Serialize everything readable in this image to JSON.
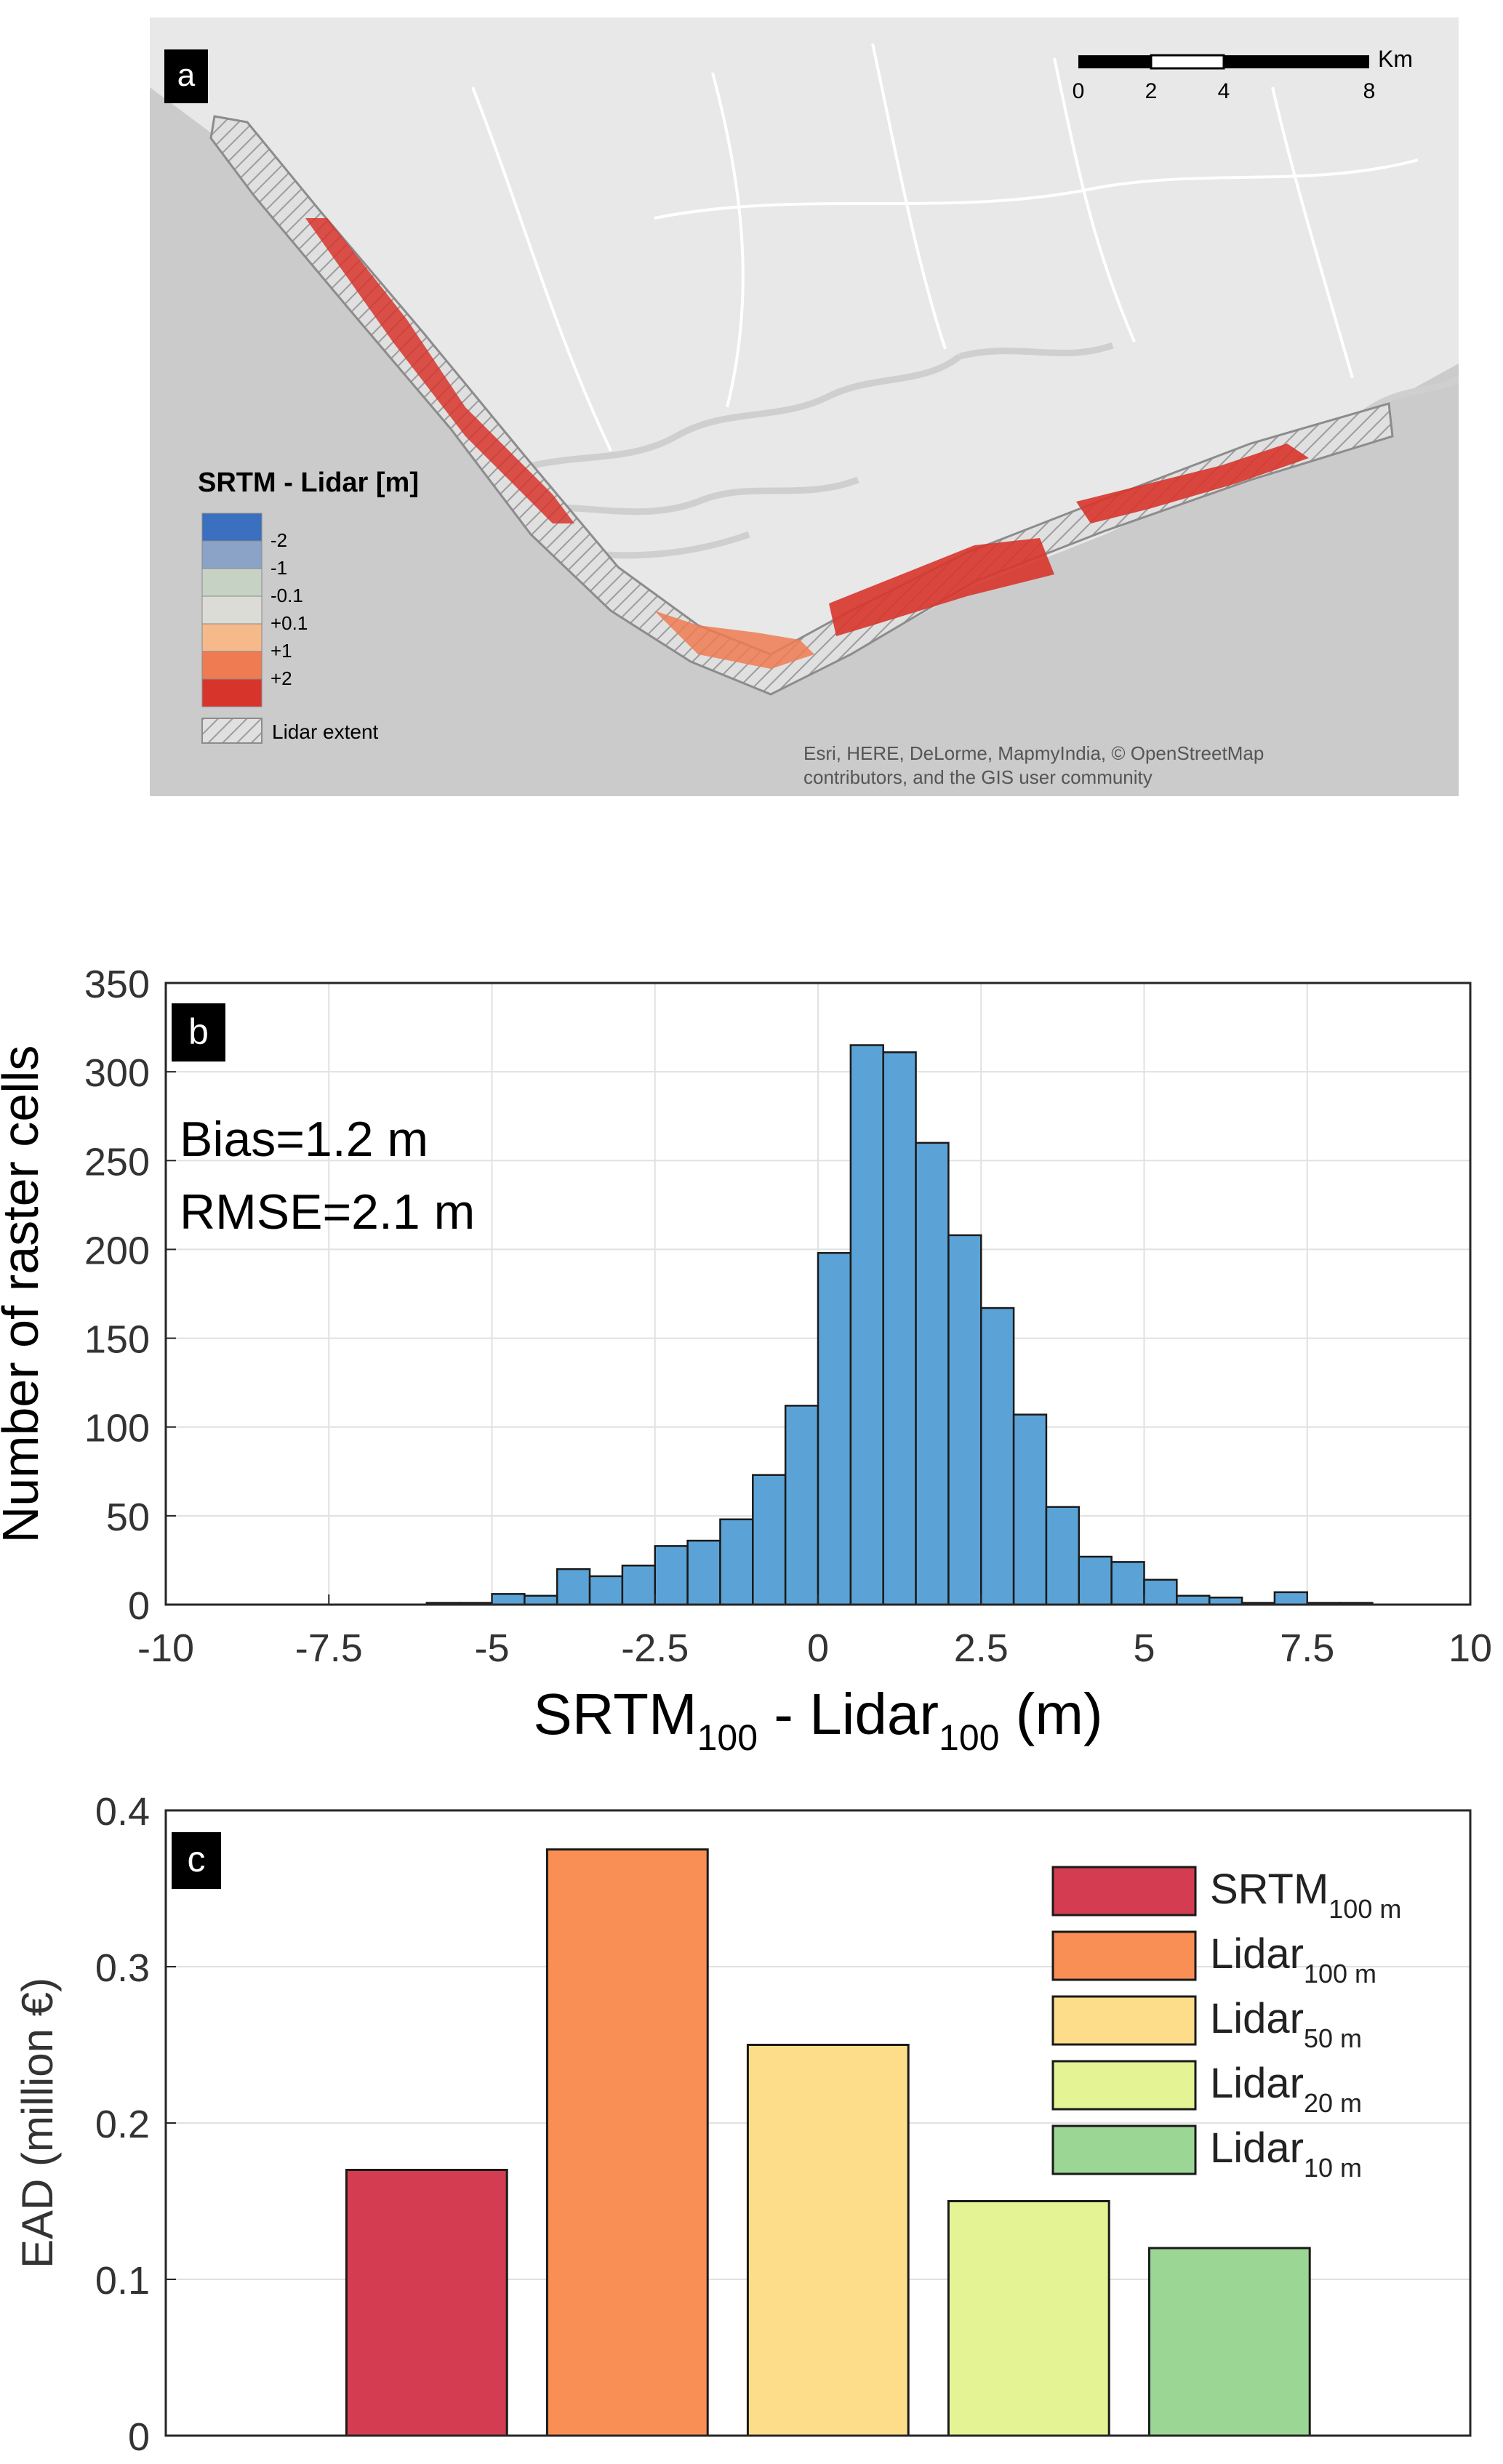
{
  "panels": {
    "a": {
      "label": "a",
      "scalebar": {
        "unit": "Km",
        "ticks": [
          "0",
          "2",
          "4",
          "8"
        ]
      },
      "legend": {
        "title": "SRTM - Lidar [m]",
        "classes": [
          {
            "label": "-2",
            "color": "#3b6fbf"
          },
          {
            "label": "-1",
            "color": "#8aa3c7"
          },
          {
            "label": "-0.1",
            "color": "#c6d3c4"
          },
          {
            "label": "+0.1",
            "color": "#dcdcd6"
          },
          {
            "label": "+1",
            "color": "#f6b98a"
          },
          {
            "label": "+2",
            "color": "#ee7b52"
          },
          {
            "label": "",
            "color": "#d7352c"
          }
        ],
        "extent_label": "Lidar extent"
      },
      "attribution": {
        "line1": "Esri, HERE, DeLorme, MapmyIndia, © OpenStreetMap",
        "line2": "contributors, and the GIS user community"
      }
    },
    "b": {
      "label": "b"
    },
    "c": {
      "label": "c"
    }
  },
  "chart_data": [
    {
      "id": "b",
      "type": "bar",
      "subtype": "histogram",
      "xlabel": {
        "main": "SRTM",
        "sub1": "100",
        "mid": " - Lidar",
        "sub2": "100",
        "tail": " (m)"
      },
      "ylabel": "Number of raster cells",
      "xlim": [
        -10,
        10
      ],
      "ylim": [
        0,
        350
      ],
      "xticks": [
        -10,
        -7.5,
        -5,
        -2.5,
        0,
        2.5,
        5,
        7.5,
        10
      ],
      "xtick_labels": [
        "-10",
        "-7.5",
        "-5",
        "-2.5",
        "0",
        "2.5",
        "5",
        "7.5",
        "10"
      ],
      "yticks": [
        0,
        50,
        100,
        150,
        200,
        250,
        300,
        350
      ],
      "ytick_labels": [
        "0",
        "50",
        "100",
        "150",
        "200",
        "250",
        "300",
        "350"
      ],
      "grid": true,
      "bin_edges": [
        -6,
        -5.5,
        -5,
        -4.5,
        -4,
        -3.5,
        -3,
        -2.5,
        -2,
        -1.5,
        -1,
        -0.5,
        0,
        0.5,
        1,
        1.5,
        2,
        2.5,
        3,
        3.5,
        4,
        4.5,
        5,
        5.5,
        6,
        6.5,
        7,
        7.5,
        8,
        8.5
      ],
      "counts": [
        1,
        1,
        6,
        5,
        20,
        16,
        22,
        33,
        36,
        48,
        73,
        112,
        198,
        315,
        311,
        260,
        208,
        167,
        107,
        55,
        27,
        24,
        14,
        5,
        4,
        1,
        7,
        1,
        1
      ],
      "bar_color": "#5ba3d6",
      "annotations": [
        "Bias=1.2 m",
        "RMSE=2.1 m"
      ]
    },
    {
      "id": "c",
      "type": "bar",
      "ylabel": "EAD (million €)",
      "ylim": [
        0,
        0.4
      ],
      "yticks": [
        0,
        0.1,
        0.2,
        0.3,
        0.4
      ],
      "ytick_labels": [
        "0",
        "0.1",
        "0.2",
        "0.3",
        "0.4"
      ],
      "grid": true,
      "series": [
        {
          "main": "SRTM",
          "sub": "100 m",
          "value": 0.17,
          "color": "#d43d51"
        },
        {
          "main": "Lidar",
          "sub": "100 m",
          "value": 0.375,
          "color": "#fa8f55"
        },
        {
          "main": "Lidar",
          "sub": "50 m",
          "value": 0.25,
          "color": "#fddd8a"
        },
        {
          "main": "Lidar",
          "sub": "20 m",
          "value": 0.15,
          "color": "#e4f495"
        },
        {
          "main": "Lidar",
          "sub": "10 m",
          "value": 0.12,
          "color": "#9bd695"
        }
      ],
      "legend_position": "top-right"
    }
  ]
}
